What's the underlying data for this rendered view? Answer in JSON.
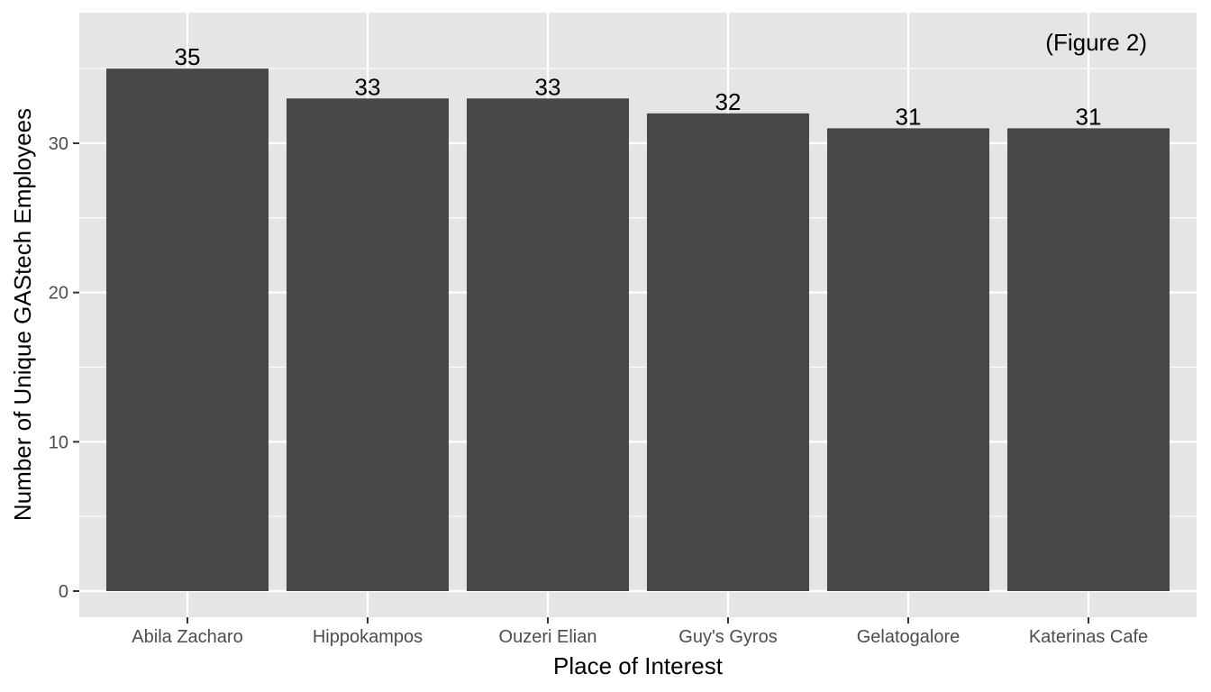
{
  "chart_data": {
    "type": "bar",
    "categories": [
      "Abila Zacharo",
      "Hippokampos",
      "Ouzeri Elian",
      "Guy's Gyros",
      "Gelatogalore",
      "Katerinas Cafe"
    ],
    "values": [
      35,
      33,
      33,
      32,
      31,
      31
    ],
    "xlabel": "Place of Interest",
    "ylabel": "Number of Unique GAStech Employees",
    "annotation": "(Figure 2)",
    "ylim": [
      -1.75,
      38.75
    ],
    "yticks": [
      0,
      10,
      20,
      30
    ],
    "ytick_labels": [
      "0",
      "10",
      "20",
      "30"
    ],
    "grid": true,
    "legend": "none",
    "colors": {
      "bar": "#474747",
      "panel_background": "#e5e5e5",
      "grid": "#ffffff",
      "tick": "#333333"
    }
  }
}
